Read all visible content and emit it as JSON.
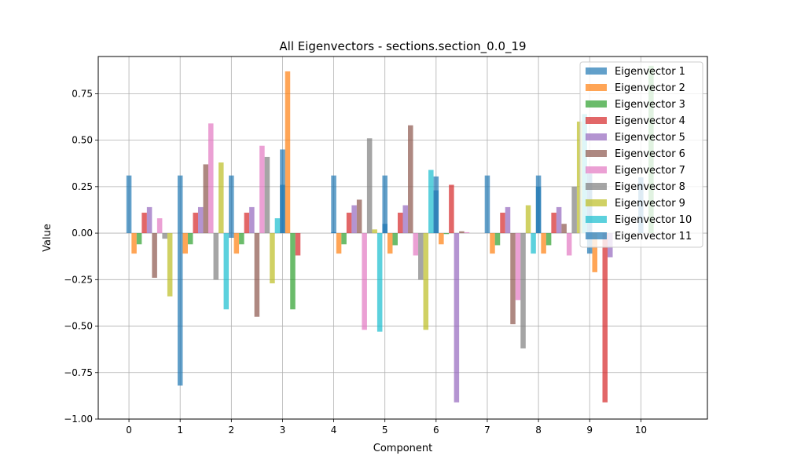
{
  "chart_data": {
    "type": "bar",
    "title": "All Eigenvectors - sections.section_0.0_19",
    "xlabel": "Component",
    "ylabel": "Value",
    "ylim": [
      -1.0,
      0.95
    ],
    "xlim": [
      -0.6,
      11.3
    ],
    "grid": true,
    "legend_position": "top-right",
    "categories": [
      "0",
      "1",
      "2",
      "3",
      "4",
      "5",
      "6",
      "7",
      "8",
      "9",
      "10"
    ],
    "y_ticks": [
      -1.0,
      -0.75,
      -0.5,
      -0.25,
      0.0,
      0.25,
      0.5,
      0.75
    ],
    "y_tick_labels": [
      "−1.00",
      "−0.75",
      "−0.50",
      "−0.25",
      "0.00",
      "0.25",
      "0.50",
      "0.75"
    ],
    "series": [
      {
        "name": "Eigenvector 1",
        "color": "#1f77b4",
        "values": [
          0.31,
          0.31,
          0.31,
          0.26,
          0.31,
          0.31,
          0.305,
          0.31,
          0.31,
          0.32,
          0.3
        ]
      },
      {
        "name": "Eigenvector 2",
        "color": "#ff7f0e",
        "values": [
          -0.11,
          -0.11,
          -0.11,
          0.87,
          -0.11,
          -0.11,
          -0.06,
          -0.11,
          -0.11,
          -0.21,
          0.0
        ]
      },
      {
        "name": "Eigenvector 3",
        "color": "#2ca02c",
        "values": [
          -0.06,
          -0.06,
          -0.06,
          -0.41,
          -0.06,
          -0.065,
          -0.005,
          -0.065,
          -0.065,
          0.0,
          0.9
        ]
      },
      {
        "name": "Eigenvector 4",
        "color": "#d62728",
        "values": [
          0.11,
          0.11,
          0.11,
          -0.12,
          0.11,
          0.11,
          0.26,
          0.11,
          0.11,
          -0.91,
          0.0
        ]
      },
      {
        "name": "Eigenvector 5",
        "color": "#9467bd",
        "values": [
          0.14,
          0.14,
          0.14,
          0.0,
          0.15,
          0.15,
          -0.91,
          0.14,
          0.14,
          -0.13,
          0.0
        ]
      },
      {
        "name": "Eigenvector 6",
        "color": "#8c564b",
        "values": [
          -0.24,
          0.37,
          -0.45,
          0.0,
          0.18,
          0.58,
          0.01,
          -0.49,
          0.05,
          0.0,
          0.0
        ]
      },
      {
        "name": "Eigenvector 7",
        "color": "#e377c2",
        "values": [
          0.08,
          0.59,
          0.47,
          0.0,
          -0.52,
          -0.12,
          0.005,
          -0.36,
          -0.12,
          0.0,
          0.0
        ]
      },
      {
        "name": "Eigenvector 8",
        "color": "#7f7f7f",
        "values": [
          -0.03,
          -0.25,
          0.41,
          0.0,
          0.51,
          -0.25,
          0.0,
          -0.62,
          0.25,
          0.0,
          0.0
        ]
      },
      {
        "name": "Eigenvector 9",
        "color": "#bcbd22",
        "values": [
          -0.34,
          0.38,
          -0.27,
          0.0,
          0.02,
          -0.52,
          0.0,
          0.15,
          0.6,
          0.0,
          0.0
        ]
      },
      {
        "name": "Eigenvector 10",
        "color": "#17becf",
        "values": [
          0.0,
          -0.41,
          0.08,
          0.0,
          -0.53,
          0.34,
          0.0,
          -0.11,
          0.64,
          0.0,
          0.0
        ]
      },
      {
        "name": "Eigenvector 11",
        "color": "#1f77b4",
        "values": [
          -0.82,
          -0.025,
          0.45,
          0.005,
          0.05,
          0.23,
          0.0,
          0.25,
          -0.11,
          0.0,
          0.0
        ]
      }
    ]
  }
}
